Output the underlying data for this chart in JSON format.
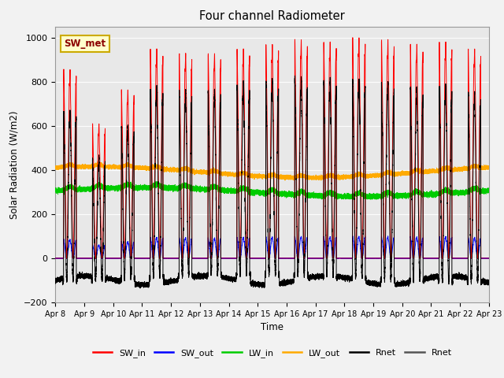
{
  "title": "Four channel Radiometer",
  "xlabel": "Time",
  "ylabel": "Solar Radiation (W/m2)",
  "ylim": [
    -200,
    1050
  ],
  "background_color": "#ebebeb",
  "plot_bg_color": "#e8e8e8",
  "legend_labels": [
    "SW_in",
    "SW_out",
    "LW_in",
    "LW_out",
    "Rnet",
    "Rnet"
  ],
  "legend_colors": [
    "#ff0000",
    "#0000ff",
    "#00cc00",
    "#ffaa00",
    "#000000",
    "#555555"
  ],
  "annotation_text": "SW_met",
  "annotation_color": "#8b0000",
  "annotation_bg": "#ffffcc",
  "annotation_border": "#ccaa00",
  "x_tick_labels": [
    "Apr 8",
    "Apr 9",
    "Apr 10",
    "Apr 11",
    "Apr 12",
    "Apr 13",
    "Apr 14",
    "Apr 15",
    "Apr 16",
    "Apr 17",
    "Apr 18",
    "Apr 19",
    "Apr 20",
    "Apr 21",
    "Apr 22",
    "Apr 23"
  ],
  "SW_in_peaks": [
    830,
    590,
    740,
    920,
    900,
    900,
    920,
    940,
    960,
    950,
    970,
    960,
    940,
    950,
    920
  ],
  "SW_out_ratio": 0.1,
  "LW_in_base": 300,
  "LW_out_base": 390,
  "Rnet_night": -100
}
